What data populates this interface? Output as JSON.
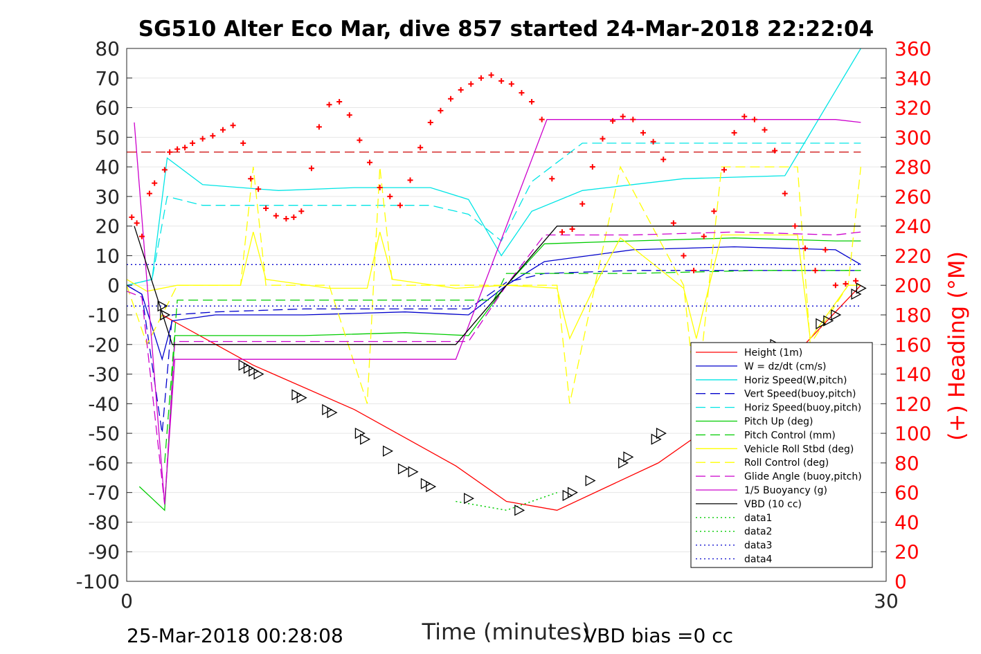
{
  "chart_data": {
    "type": "line",
    "title": "SG510 Alter Eco Mar, dive 857 started 24-Mar-2018 22:22:04",
    "xlabel": "Time (minutes)",
    "ylabel_right": "(+) Heading (°M)",
    "xlim": [
      0,
      30
    ],
    "ylim": [
      -100,
      80
    ],
    "ylim_right": [
      0,
      360
    ],
    "x_ticks": [
      "0",
      "30"
    ],
    "y_ticks": [
      "80",
      "70",
      "60",
      "50",
      "40",
      "30",
      "20",
      "10",
      "0",
      "-10",
      "-20",
      "-30",
      "-40",
      "-50",
      "-60",
      "-70",
      "-80",
      "-90",
      "-100"
    ],
    "y_ticks_right": [
      "360",
      "340",
      "320",
      "300",
      "280",
      "260",
      "240",
      "220",
      "200",
      "180",
      "160",
      "140",
      "120",
      "100",
      "80",
      "60",
      "40",
      "20",
      "0"
    ],
    "grid": true,
    "legend_position": "bottom-right",
    "footer_left": "25-Mar-2018 00:28:08",
    "footer_right": "VBD bias =0 cc",
    "series": [
      {
        "name": "Height (1m)",
        "color": "#ff0000",
        "style": "solid",
        "x": [
          1.4,
          5.0,
          9.0,
          13.0,
          15.0,
          17.0,
          21.0,
          25.0,
          29.0
        ],
        "y": [
          -10,
          -27,
          -42,
          -61,
          -73,
          -76,
          -60,
          -36,
          0
        ]
      },
      {
        "name": "W = dz/dt (cm/s)",
        "color": "#0000cc",
        "style": "solid",
        "x": [
          0,
          0.6,
          1.4,
          1.8,
          3.5,
          7.0,
          11.0,
          13.5,
          15.0,
          16.5,
          20.0,
          24.0,
          28.0,
          29.0
        ],
        "y": [
          0,
          -3,
          -25,
          -12,
          -10,
          -10,
          -9,
          -10,
          0,
          8,
          12,
          13,
          12,
          7
        ]
      },
      {
        "name": "Horiz Speed(W,pitch)",
        "color": "#00e5e5",
        "style": "solid",
        "x": [
          0,
          1.0,
          1.6,
          3.0,
          6.0,
          9.0,
          12.0,
          13.5,
          14.8,
          16.0,
          18.0,
          22.0,
          26.0,
          29.0
        ],
        "y": [
          0,
          2,
          43,
          34,
          32,
          33,
          33,
          29,
          10,
          25,
          32,
          36,
          37,
          80
        ]
      },
      {
        "name": "Vert Speed(buoy,pitch)",
        "color": "#0000cc",
        "style": "dash",
        "x": [
          0,
          0.6,
          1.4,
          1.8,
          3.5,
          7.0,
          11.0,
          13.5,
          15.0,
          16.5,
          20.0,
          24.0,
          28.0,
          29.0
        ],
        "y": [
          0,
          -3,
          -50,
          -10,
          -9,
          -8,
          -8,
          -8,
          1,
          4,
          5,
          5,
          5,
          5
        ]
      },
      {
        "name": "Horiz Speed(buoy,pitch)",
        "color": "#00e5e5",
        "style": "dash",
        "x": [
          0,
          1.0,
          1.6,
          3.0,
          6.0,
          9.0,
          12.0,
          13.5,
          14.8,
          16.0,
          18.0,
          22.0,
          26.0,
          29.0
        ],
        "y": [
          0,
          2,
          30,
          27,
          27,
          27,
          27,
          24,
          15,
          35,
          48,
          48,
          48,
          48
        ]
      },
      {
        "name": "Pitch Up (deg)",
        "color": "#00cc00",
        "style": "solid",
        "x": [
          0.5,
          1.0,
          1.5,
          1.9,
          3.5,
          7.0,
          11.0,
          13.5,
          15.0,
          16.5,
          20.0,
          24.0,
          28.0,
          29.0
        ],
        "y": [
          -68,
          -72,
          -76,
          -17,
          -17,
          -17,
          -16,
          -17,
          0,
          14,
          15,
          16,
          15,
          15
        ]
      },
      {
        "name": "Pitch Control (mm)",
        "color": "#00cc00",
        "style": "dash",
        "x": [
          1.5,
          2.0,
          8.0,
          13.0,
          14.5,
          15.0,
          20.0,
          25.0,
          29.0
        ],
        "y": [
          -60,
          -5,
          -5,
          -5,
          -5,
          4,
          4,
          5,
          5
        ]
      },
      {
        "name": "Vehicle Roll Stbd (deg)",
        "color": "#ffff00",
        "style": "solid",
        "x": [
          0,
          0.8,
          2.0,
          4.5,
          5.0,
          5.5,
          8.0,
          9.5,
          10.0,
          10.5,
          13.0,
          15.0,
          17.0,
          17.5,
          18.5,
          19.5,
          22.0,
          22.5,
          23.5,
          26.5,
          27.0,
          28.5,
          29.0
        ],
        "y": [
          2,
          -2,
          0,
          0,
          18,
          2,
          -1,
          -1,
          18,
          2,
          -1,
          0,
          -1,
          -18,
          0,
          16,
          -1,
          -18,
          17,
          17,
          -18,
          0,
          0
        ]
      },
      {
        "name": "Roll Control (deg)",
        "color": "#ffff00",
        "style": "dash",
        "x": [
          0,
          0.8,
          2.0,
          4.5,
          5.0,
          5.5,
          8.0,
          9.5,
          10.0,
          10.5,
          13.0,
          15.0,
          17.0,
          17.5,
          18.5,
          19.5,
          22.0,
          22.5,
          23.5,
          26.5,
          27.0,
          28.5,
          29.0
        ],
        "y": [
          0,
          -20,
          0,
          0,
          40,
          0,
          0,
          -40,
          40,
          0,
          0,
          0,
          0,
          -40,
          0,
          40,
          0,
          -40,
          40,
          40,
          -20,
          0,
          40
        ]
      },
      {
        "name": "Glide Angle (buoy,pitch)",
        "color": "#cc00cc",
        "style": "dash",
        "x": [
          0,
          0.6,
          1.5,
          1.9,
          3.5,
          7.0,
          11.0,
          13.5,
          15.0,
          16.5,
          20.0,
          24.0,
          28.0,
          29.0
        ],
        "y": [
          -2,
          -4,
          -74,
          -19,
          -19,
          -19,
          -19,
          -19,
          0,
          17,
          17,
          18,
          17,
          18
        ]
      },
      {
        "name": "1/5 Buoyancy (g)",
        "color": "#cc00cc",
        "style": "solid",
        "x": [
          0.3,
          1.5,
          1.9,
          13.0,
          16.6,
          28.0,
          29.0
        ],
        "y": [
          55,
          -74,
          -25,
          -25,
          56,
          56,
          55
        ]
      },
      {
        "name": "VBD (10 cc)",
        "color": "#000000",
        "style": "solid",
        "x": [
          0.3,
          1.8,
          2.5,
          13.0,
          15.0,
          17.0,
          29.0
        ],
        "y": [
          20,
          -20,
          -20,
          -20,
          0,
          20,
          20
        ]
      },
      {
        "name": "data1",
        "color": "#00cc00",
        "style": "dot",
        "x": [
          13.0,
          15.0,
          17.0
        ],
        "y": [
          -73,
          -76,
          -70
        ]
      },
      {
        "name": "data2",
        "color": "#00cc00",
        "style": "dot",
        "x": [
          13.0,
          15.0,
          17.0
        ],
        "y": [
          -73,
          -76,
          -70
        ]
      },
      {
        "name": "data3",
        "color": "#0000cc",
        "style": "dot",
        "x": [
          0,
          29.0
        ],
        "y": [
          7,
          7
        ]
      },
      {
        "name": "data4",
        "color": "#0000cc",
        "style": "dot",
        "x": [
          0,
          29.0
        ],
        "y": [
          -7,
          -7
        ]
      }
    ],
    "reference_line_right": {
      "value": 290,
      "color": "#cc0000",
      "style": "dash"
    },
    "heading_markers": {
      "axis": "right",
      "color": "#ff0000",
      "marker": "+",
      "x": [
        0.2,
        0.4,
        0.6,
        0.9,
        1.1,
        1.5,
        1.7,
        2.0,
        2.3,
        2.6,
        3.0,
        3.4,
        3.8,
        4.2,
        4.6,
        4.9,
        5.2,
        5.5,
        5.9,
        6.3,
        6.6,
        6.9,
        7.3,
        7.6,
        8.0,
        8.4,
        8.8,
        9.2,
        9.6,
        10.0,
        10.4,
        10.8,
        11.2,
        11.6,
        12.0,
        12.4,
        12.8,
        13.2,
        13.6,
        14.0,
        14.4,
        14.8,
        15.2,
        15.6,
        16.0,
        16.4,
        16.8,
        17.2,
        17.6,
        18.0,
        18.4,
        18.8,
        19.2,
        19.6,
        20.0,
        20.4,
        20.8,
        21.2,
        21.6,
        22.0,
        22.4,
        22.8,
        23.2,
        23.6,
        24.0,
        24.4,
        24.8,
        25.2,
        25.6,
        26.0,
        26.4,
        26.8,
        27.2,
        27.6,
        28.0,
        28.4,
        28.8
      ],
      "y": [
        246,
        242,
        233,
        262,
        269,
        278,
        290,
        292,
        293,
        296,
        299,
        301,
        305,
        308,
        296,
        272,
        265,
        252,
        247,
        245,
        246,
        250,
        279,
        307,
        322,
        324,
        315,
        298,
        283,
        266,
        260,
        254,
        271,
        293,
        310,
        318,
        326,
        332,
        336,
        340,
        342,
        338,
        336,
        330,
        324,
        312,
        272,
        236,
        238,
        255,
        280,
        299,
        311,
        314,
        312,
        303,
        297,
        285,
        242,
        220,
        210,
        233,
        250,
        278,
        303,
        314,
        312,
        305,
        291,
        262,
        240,
        225,
        210,
        224,
        200,
        201,
        203
      ]
    },
    "markers_black_triangle": {
      "x": [
        1.4,
        1.5,
        4.6,
        4.8,
        5.0,
        5.2,
        6.7,
        6.9,
        7.9,
        8.1,
        9.2,
        9.4,
        10.3,
        10.9,
        11.3,
        11.8,
        12.0,
        13.5,
        15.5,
        17.4,
        17.6,
        18.3,
        19.6,
        19.8,
        20.9,
        21.1,
        22.5,
        22.7,
        23.0,
        23.3,
        24.4,
        24.6,
        25.6,
        27.4,
        27.7,
        28.0,
        28.8,
        29.0
      ],
      "y": [
        -7,
        -10,
        -27,
        -28,
        -29,
        -30,
        -37,
        -38,
        -42,
        -43,
        -50,
        -52,
        -56,
        -62,
        -63,
        -67,
        -68,
        -72,
        -76,
        -71,
        -70,
        -66,
        -60,
        -58,
        -52,
        -50,
        -44,
        -43,
        -40,
        -39,
        -32,
        -30,
        -20,
        -13,
        -12,
        -10,
        -3,
        -1
      ]
    }
  }
}
